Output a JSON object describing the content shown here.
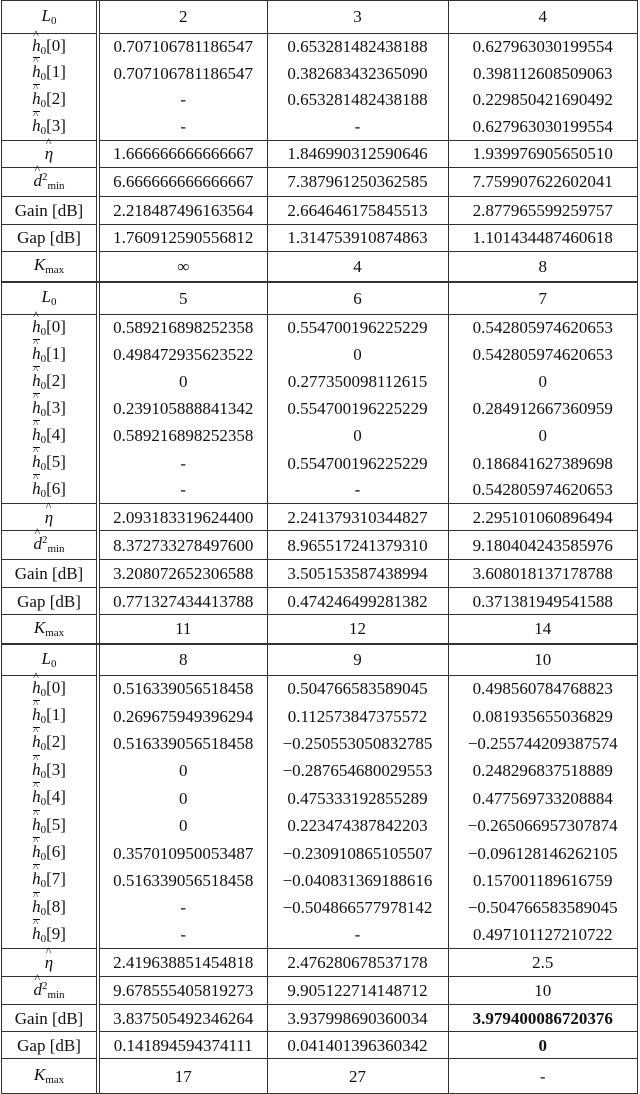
{
  "tables": [
    {
      "header": {
        "label": {
          "main": "L",
          "sub": "0",
          "accent": "none",
          "italic": true
        },
        "values": [
          "2",
          "3",
          "4"
        ]
      },
      "coef_rows": [
        {
          "label": {
            "main": "h",
            "sub": "0",
            "idx": "[0]",
            "accent": "hat"
          },
          "values": [
            "0.707106781186547",
            "0.653281482438188",
            "0.627963030199554"
          ]
        },
        {
          "label": {
            "main": "h",
            "sub": "0",
            "idx": "[1]",
            "accent": "hat-bar"
          },
          "values": [
            "0.707106781186547",
            "0.382683432365090",
            "0.398112608509063"
          ]
        },
        {
          "label": {
            "main": "h",
            "sub": "0",
            "idx": "[2]",
            "accent": "hat-bar"
          },
          "values": [
            "-",
            "0.653281482438188",
            "0.229850421690492"
          ]
        },
        {
          "label": {
            "main": "h",
            "sub": "0",
            "idx": "[3]",
            "accent": "hat-bar"
          },
          "values": [
            "-",
            "-",
            "0.627963030199554"
          ]
        }
      ],
      "metric_rows": [
        {
          "label": {
            "main": "η",
            "accent": "hat",
            "italic": true
          },
          "values": [
            "1.666666666666667",
            "1.846990312590646",
            "1.939976905650510"
          ]
        },
        {
          "label": {
            "main": "d",
            "sup": "2",
            "sub": "min",
            "accent": "hat",
            "italic": true
          },
          "values": [
            "6.666666666666667",
            "7.387961250362585",
            "7.759907622602041"
          ]
        },
        {
          "label": {
            "main": "Gain [dB]"
          },
          "values": [
            "2.218487496163564",
            "2.664646175845513",
            "2.877965599259757"
          ]
        },
        {
          "label": {
            "main": "Gap [dB]"
          },
          "values": [
            "1.760912590556812",
            "1.314753910874863",
            "1.101434487460618"
          ]
        },
        {
          "label": {
            "main": "K",
            "sub": "max",
            "italic": true
          },
          "values": [
            "∞",
            "4",
            "8"
          ]
        }
      ]
    },
    {
      "header": {
        "label": {
          "main": "L",
          "sub": "0",
          "accent": "none",
          "italic": true
        },
        "values": [
          "5",
          "6",
          "7"
        ]
      },
      "coef_rows": [
        {
          "label": {
            "main": "h",
            "sub": "0",
            "idx": "[0]",
            "accent": "hat"
          },
          "values": [
            "0.589216898252358",
            "0.554700196225229",
            "0.542805974620653"
          ]
        },
        {
          "label": {
            "main": "h",
            "sub": "0",
            "idx": "[1]",
            "accent": "hat-bar"
          },
          "values": [
            "0.498472935623522",
            "0",
            "0.542805974620653"
          ]
        },
        {
          "label": {
            "main": "h",
            "sub": "0",
            "idx": "[2]",
            "accent": "hat-bar"
          },
          "values": [
            "0",
            "0.277350098112615",
            "0"
          ]
        },
        {
          "label": {
            "main": "h",
            "sub": "0",
            "idx": "[3]",
            "accent": "hat-bar"
          },
          "values": [
            "0.239105888841342",
            "0.554700196225229",
            "0.284912667360959"
          ]
        },
        {
          "label": {
            "main": "h",
            "sub": "0",
            "idx": "[4]",
            "accent": "hat-bar"
          },
          "values": [
            "0.589216898252358",
            "0",
            "0"
          ]
        },
        {
          "label": {
            "main": "h",
            "sub": "0",
            "idx": "[5]",
            "accent": "hat-bar"
          },
          "values": [
            "-",
            "0.554700196225229",
            "0.186841627389698"
          ]
        },
        {
          "label": {
            "main": "h",
            "sub": "0",
            "idx": "[6]",
            "accent": "hat-bar"
          },
          "values": [
            "-",
            "-",
            "0.542805974620653"
          ]
        }
      ],
      "metric_rows": [
        {
          "label": {
            "main": "η",
            "accent": "hat",
            "italic": true
          },
          "values": [
            "2.093183319624400",
            "2.241379310344827",
            "2.295101060896494"
          ]
        },
        {
          "label": {
            "main": "d",
            "sup": "2",
            "sub": "min",
            "accent": "hat",
            "italic": true
          },
          "values": [
            "8.372733278497600",
            "8.965517241379310",
            "9.180404243585976"
          ]
        },
        {
          "label": {
            "main": "Gain [dB]"
          },
          "values": [
            "3.208072652306588",
            "3.505153587438994",
            "3.608018137178788"
          ]
        },
        {
          "label": {
            "main": "Gap [dB]"
          },
          "values": [
            "0.771327434413788",
            "0.474246499281382",
            "0.371381949541588"
          ]
        },
        {
          "label": {
            "main": "K",
            "sub": "max",
            "italic": true
          },
          "values": [
            "11",
            "12",
            "14"
          ]
        }
      ]
    },
    {
      "header": {
        "label": {
          "main": "L",
          "sub": "0",
          "accent": "none",
          "italic": true
        },
        "values": [
          "8",
          "9",
          "10"
        ]
      },
      "coef_rows": [
        {
          "label": {
            "main": "h",
            "sub": "0",
            "idx": "[0]",
            "accent": "hat"
          },
          "values": [
            "0.516339056518458",
            "0.504766583589045",
            "0.498560784768823"
          ]
        },
        {
          "label": {
            "main": "h",
            "sub": "0",
            "idx": "[1]",
            "accent": "hat-bar"
          },
          "values": [
            "0.269675949396294",
            "0.112573847375572",
            "0.081935655036829"
          ]
        },
        {
          "label": {
            "main": "h",
            "sub": "0",
            "idx": "[2]",
            "accent": "hat-bar"
          },
          "values": [
            "0.516339056518458",
            "−0.250553050832785",
            "−0.255744209387574"
          ]
        },
        {
          "label": {
            "main": "h",
            "sub": "0",
            "idx": "[3]",
            "accent": "hat-bar"
          },
          "values": [
            "0",
            "−0.287654680029553",
            "0.248296837518889"
          ]
        },
        {
          "label": {
            "main": "h",
            "sub": "0",
            "idx": "[4]",
            "accent": "hat-bar"
          },
          "values": [
            "0",
            "0.475333192855289",
            "0.477569733208884"
          ]
        },
        {
          "label": {
            "main": "h",
            "sub": "0",
            "idx": "[5]",
            "accent": "hat-bar"
          },
          "values": [
            "0",
            "0.223474387842203",
            "−0.265066957307874"
          ]
        },
        {
          "label": {
            "main": "h",
            "sub": "0",
            "idx": "[6]",
            "accent": "hat-bar"
          },
          "values": [
            "0.357010950053487",
            "−0.230910865105507",
            "−0.096128146262105"
          ]
        },
        {
          "label": {
            "main": "h",
            "sub": "0",
            "idx": "[7]",
            "accent": "hat-bar"
          },
          "values": [
            "0.516339056518458",
            "−0.040831369188616",
            "0.157001189616759"
          ]
        },
        {
          "label": {
            "main": "h",
            "sub": "0",
            "idx": "[8]",
            "accent": "hat-bar"
          },
          "values": [
            "-",
            "−0.504866577978142",
            "−0.504766583589045"
          ]
        },
        {
          "label": {
            "main": "h",
            "sub": "0",
            "idx": "[9]",
            "accent": "hat-bar"
          },
          "values": [
            "-",
            "-",
            "0.497101127210722"
          ]
        }
      ],
      "metric_rows": [
        {
          "label": {
            "main": "η",
            "accent": "hat",
            "italic": true
          },
          "values": [
            "2.419638851454818",
            "2.476280678537178",
            "2.5"
          ]
        },
        {
          "label": {
            "main": "d",
            "sup": "2",
            "sub": "min",
            "accent": "hat",
            "italic": true
          },
          "values": [
            "9.678555405819273",
            "9.905122714148712",
            "10"
          ]
        },
        {
          "label": {
            "main": "Gain [dB]"
          },
          "values": [
            "3.837505492346264",
            "3.937998690360034",
            "3.979400086720376"
          ],
          "bold": [
            false,
            false,
            true
          ]
        },
        {
          "label": {
            "main": "Gap [dB]"
          },
          "values": [
            "0.141894594374111",
            "0.041401396360342",
            "0"
          ],
          "bold": [
            false,
            false,
            true
          ]
        },
        {
          "label": {
            "main": "K",
            "sub": "max",
            "italic": true
          },
          "values": [
            "17",
            "27",
            "-"
          ]
        }
      ]
    }
  ]
}
